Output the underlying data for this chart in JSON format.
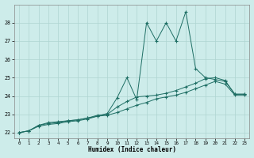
{
  "xlabel": "Humidex (Indice chaleur)",
  "bg_color": "#cdecea",
  "grid_color": "#aed4d1",
  "line_color": "#1e6e64",
  "xlim": [
    -0.5,
    23.5
  ],
  "ylim": [
    21.7,
    29.0
  ],
  "yticks": [
    22,
    23,
    24,
    25,
    26,
    27,
    28
  ],
  "xticks": [
    0,
    1,
    2,
    3,
    4,
    5,
    6,
    7,
    8,
    9,
    10,
    11,
    12,
    13,
    14,
    15,
    16,
    17,
    18,
    19,
    20,
    21,
    22,
    23
  ],
  "x": [
    0,
    1,
    2,
    3,
    4,
    5,
    6,
    7,
    8,
    9,
    10,
    11,
    12,
    13,
    14,
    15,
    16,
    17,
    18,
    19,
    20,
    21,
    22,
    23
  ],
  "line1": [
    22.0,
    22.1,
    22.4,
    22.55,
    22.6,
    22.65,
    22.7,
    22.8,
    22.9,
    23.05,
    23.9,
    25.0,
    23.8,
    28.0,
    27.0,
    28.0,
    27.0,
    28.6,
    25.5,
    25.0,
    24.9,
    24.8,
    24.1,
    24.1
  ],
  "line2": [
    22.0,
    22.1,
    22.4,
    22.5,
    22.55,
    22.65,
    22.7,
    22.8,
    22.95,
    23.0,
    23.4,
    23.7,
    23.95,
    24.0,
    24.05,
    24.15,
    24.3,
    24.5,
    24.7,
    24.95,
    25.0,
    24.85,
    24.1,
    24.1
  ],
  "line3": [
    22.0,
    22.1,
    22.35,
    22.45,
    22.5,
    22.6,
    22.65,
    22.75,
    22.9,
    22.95,
    23.1,
    23.3,
    23.5,
    23.65,
    23.85,
    23.95,
    24.05,
    24.2,
    24.4,
    24.6,
    24.8,
    24.65,
    24.05,
    24.05
  ]
}
